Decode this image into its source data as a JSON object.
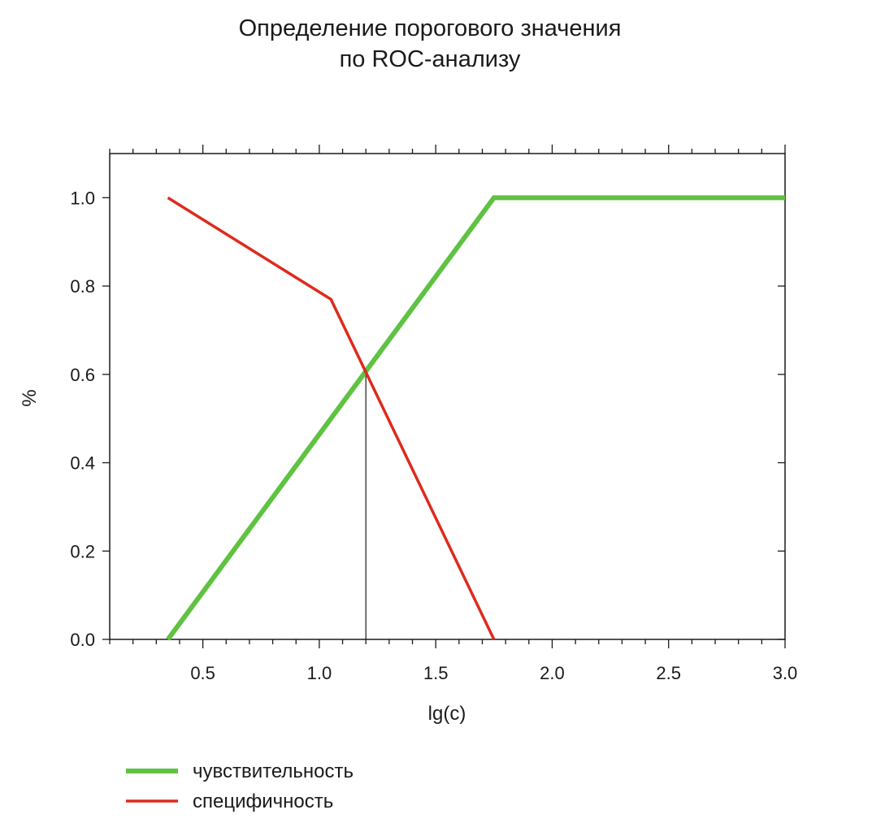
{
  "chart_data": {
    "type": "line",
    "title": [
      "Определение порогового значения",
      "по ROC-анализу"
    ],
    "xlabel": "lg(c)",
    "ylabel": "%",
    "xlim": [
      0.1,
      3.0
    ],
    "ylim": [
      0.0,
      1.1
    ],
    "x_ticks": [
      0.5,
      1.0,
      1.5,
      2.0,
      2.5,
      3.0
    ],
    "x_tick_labels": [
      "0.5",
      "1.0",
      "1.5",
      "2.0",
      "2.5",
      "3.0"
    ],
    "x_minor_step": 0.1,
    "y_ticks": [
      0.0,
      0.2,
      0.4,
      0.6,
      0.8,
      1.0
    ],
    "y_tick_labels": [
      "0.0",
      "0.2",
      "0.4",
      "0.6",
      "0.8",
      "1.0"
    ],
    "grid": false,
    "legend_position": "bottom-left",
    "series": [
      {
        "name": "чувствительность",
        "color": "#5fc241",
        "x": [
          0.35,
          1.75,
          3.0
        ],
        "y": [
          0.0,
          1.0,
          1.0
        ]
      },
      {
        "name": "специфичность",
        "color": "#de2a1d",
        "x": [
          0.35,
          1.05,
          1.75
        ],
        "y": [
          1.0,
          0.77,
          0.0
        ]
      }
    ],
    "threshold": {
      "x": 1.2,
      "y": 0.6
    }
  }
}
